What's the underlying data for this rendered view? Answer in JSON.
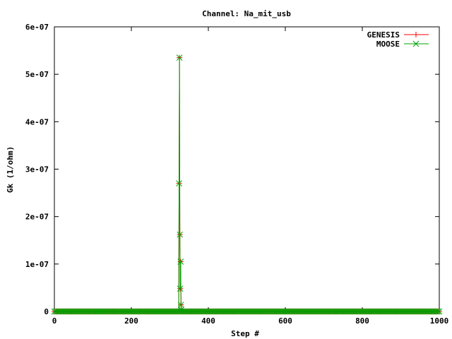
{
  "chart_data": {
    "type": "line",
    "title": "Channel: Na_mit_usb",
    "xlabel": "Step #",
    "ylabel": "Gk (1/ohm)",
    "xlim": [
      0,
      1000
    ],
    "ylim": [
      0,
      6e-07
    ],
    "x_ticks": [
      "0",
      "200",
      "400",
      "600",
      "800",
      "1000"
    ],
    "y_ticks": [
      "0",
      "1e-07",
      "2e-07",
      "3e-07",
      "4e-07",
      "5e-07",
      "6e-07"
    ],
    "grid": false,
    "legend_position": "top-right",
    "series": [
      {
        "name": "GENESIS",
        "color": "#ff0000",
        "marker": "plus",
        "x": [
          0,
          323,
          324,
          325,
          326,
          327,
          328,
          329,
          330,
          331,
          1000
        ],
        "y": [
          0,
          0,
          2.7e-07,
          5.35e-07,
          1.62e-07,
          4.8e-08,
          1.05e-07,
          1.4e-08,
          4e-09,
          0,
          0
        ]
      },
      {
        "name": "MOOSE",
        "color": "#00a000",
        "marker": "x",
        "x": [
          0,
          323,
          324,
          325,
          326,
          327,
          328,
          329,
          330,
          331,
          1000
        ],
        "y": [
          0,
          0,
          2.7e-07,
          5.35e-07,
          1.62e-07,
          4.8e-08,
          1.05e-07,
          1.4e-08,
          4e-09,
          0,
          0
        ]
      }
    ]
  }
}
